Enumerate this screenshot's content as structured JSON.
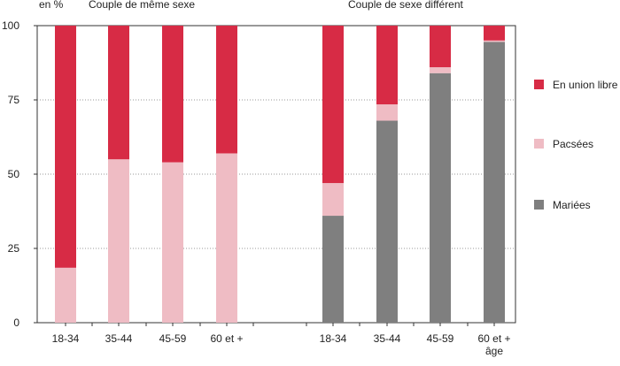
{
  "chart_data": {
    "type": "bar",
    "stacked": true,
    "y_unit_label": "en %",
    "ylim": [
      0,
      100
    ],
    "yticks": [
      0,
      25,
      50,
      75,
      100
    ],
    "groups": [
      {
        "title": "Couple de même sexe",
        "categories": [
          "18-34",
          "35-44",
          "45-59",
          "60 et +"
        ],
        "series": [
          {
            "name": "Mariées",
            "values": [
              0,
              0,
              0,
              0
            ]
          },
          {
            "name": "Pacsées",
            "values": [
              18.5,
              55,
              54,
              57
            ]
          },
          {
            "name": "En union libre",
            "values": [
              81.5,
              45,
              46,
              43
            ]
          }
        ]
      },
      {
        "title": "Couple de sexe différent",
        "categories": [
          "18-34",
          "35-44",
          "45-59",
          "60 et +\nâge"
        ],
        "series": [
          {
            "name": "Mariées",
            "values": [
              36,
              68,
              84,
              94.5
            ]
          },
          {
            "name": "Pacsées",
            "values": [
              11,
              5.5,
              2,
              0.5
            ]
          },
          {
            "name": "En union libre",
            "values": [
              53,
              26.5,
              14,
              5
            ]
          }
        ]
      }
    ],
    "legend": [
      {
        "name": "En union libre",
        "color": "#d72b45"
      },
      {
        "name": "Pacsées",
        "color": "#efbcc4"
      },
      {
        "name": "Mariées",
        "color": "#7f7f7f"
      }
    ],
    "legend_position": "right",
    "grid": "horizontal-dotted"
  }
}
